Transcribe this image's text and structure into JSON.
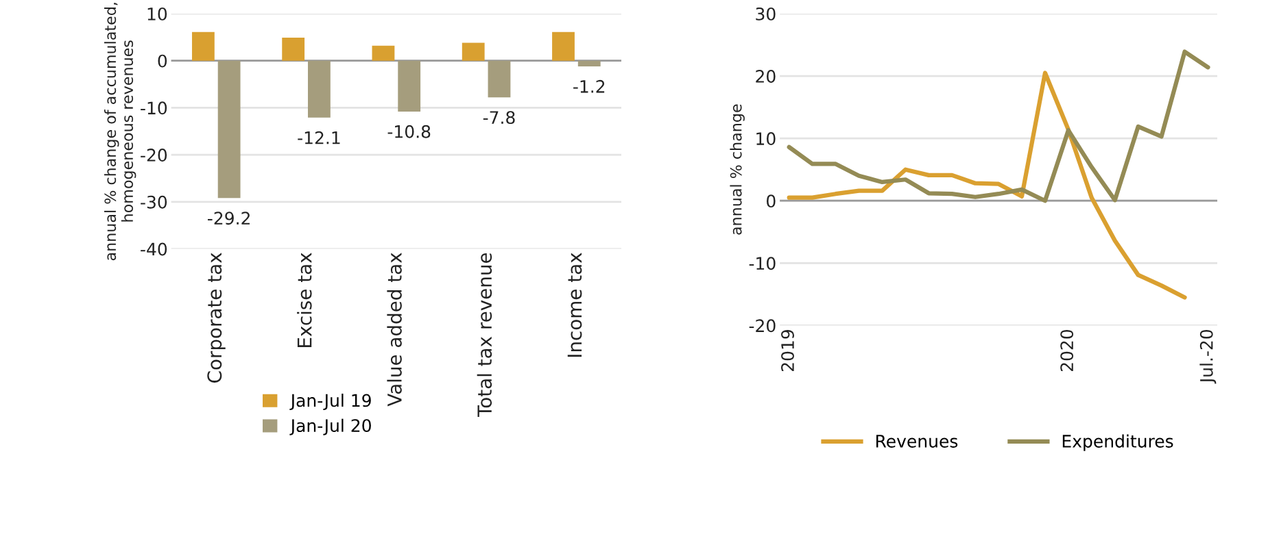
{
  "chart_data": [
    {
      "type": "bar",
      "ylabel": "annual % change of accumulated,\nhomogeneous revenues",
      "categories": [
        "Corporate tax",
        "Excise tax",
        "Value added tax",
        "Total tax revenue",
        "Income tax"
      ],
      "series": [
        {
          "name": "Jan-Jul 19",
          "color": "#d9a030",
          "values": [
            6.1,
            4.9,
            3.2,
            3.8,
            6.1
          ]
        },
        {
          "name": "Jan-Jul 20",
          "color": "#a59d7d",
          "values": [
            -29.2,
            -12.1,
            -10.8,
            -7.8,
            -1.2
          ],
          "value_labels": [
            "-29.2",
            "-12.1",
            "-10.8",
            "-7.8",
            "-1.2"
          ]
        }
      ],
      "ylim": [
        -40,
        10
      ],
      "yticks": [
        -40,
        -30,
        -20,
        -10,
        0,
        10
      ],
      "grid": "y",
      "legend": "bottom"
    },
    {
      "type": "line",
      "ylabel": "annual % change",
      "categories": [
        "2019",
        null,
        null,
        null,
        null,
        null,
        null,
        null,
        null,
        null,
        null,
        null,
        "2020",
        null,
        null,
        null,
        null,
        null,
        "Jul.-20"
      ],
      "series": [
        {
          "name": "Revenues",
          "color": "#daa030",
          "values": [
            0.5,
            0.5,
            1.1,
            1.6,
            1.6,
            5.0,
            4.1,
            4.1,
            2.8,
            2.7,
            0.7,
            20.5,
            11.4,
            0.5,
            -6.4,
            -11.9,
            -13.6,
            -15.5,
            null
          ]
        },
        {
          "name": "Expenditures",
          "color": "#948b55",
          "values": [
            8.6,
            5.9,
            5.9,
            4.0,
            3.0,
            3.4,
            1.2,
            1.1,
            0.6,
            1.1,
            1.8,
            0.0,
            11.3,
            5.4,
            0.1,
            11.9,
            10.3,
            23.9,
            21.4
          ]
        }
      ],
      "ylim": [
        -20,
        30
      ],
      "yticks": [
        -20,
        -10,
        0,
        10,
        20,
        30
      ],
      "grid": "y",
      "legend": "bottom",
      "line_style": "solid",
      "marker": "none"
    }
  ]
}
